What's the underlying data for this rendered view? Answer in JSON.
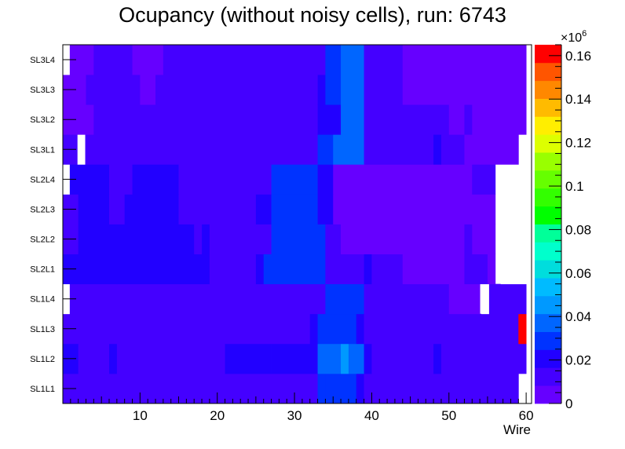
{
  "chart_data": {
    "type": "heatmap",
    "title": "Ocupancy (without noisy cells), run: 6743",
    "xlabel": "Wire",
    "ylabel": "",
    "xlim": [
      0,
      60.7
    ],
    "x_ticks": [
      "10",
      "20",
      "30",
      "40",
      "50",
      "60"
    ],
    "x_tick_values": [
      10,
      20,
      30,
      40,
      50,
      60
    ],
    "y_categories": [
      "SL1L1",
      "SL1L2",
      "SL1L3",
      "SL1L4",
      "SL2L1",
      "SL2L2",
      "SL2L3",
      "SL2L4",
      "SL3L1",
      "SL3L2",
      "SL3L3",
      "SL3L4"
    ],
    "color_scale": {
      "min": 0,
      "max": 0.165,
      "multiplier_label": "×10",
      "multiplier_exponent": "6",
      "ticks": [
        "0",
        "0.02",
        "0.04",
        "0.06",
        "0.08",
        "0.1",
        "0.12",
        "0.14",
        "0.16"
      ],
      "tick_values": [
        0,
        0.02,
        0.04,
        0.06,
        0.08,
        0.1,
        0.12,
        0.14,
        0.16
      ],
      "palette": [
        "#6600ff",
        "#4400ff",
        "#2200ff",
        "#0033ff",
        "#0066ff",
        "#0099ff",
        "#00bbff",
        "#00dddd",
        "#00ffcc",
        "#00ff99",
        "#00ff00",
        "#33ff00",
        "#66ff00",
        "#99ff00",
        "#ddff00",
        "#ffee00",
        "#ffbb00",
        "#ff8800",
        "#ff5500",
        "#ff0000"
      ]
    },
    "rows": [
      {
        "layer": "SL1L1",
        "segments": [
          [
            0,
            33,
            0.013
          ],
          [
            33,
            34,
            0.03
          ],
          [
            34,
            38,
            0.03
          ],
          [
            38,
            39,
            0.022
          ],
          [
            39,
            59,
            0.013
          ]
        ],
        "empty": [
          [
            59.7,
            60.7
          ]
        ]
      },
      {
        "layer": "SL1L2",
        "segments": [
          [
            0,
            2,
            0.022
          ],
          [
            2,
            6,
            0.013
          ],
          [
            6,
            7,
            0.022
          ],
          [
            7,
            21,
            0.013
          ],
          [
            21,
            27,
            0.022
          ],
          [
            27,
            33,
            0.022
          ],
          [
            33,
            36,
            0.04
          ],
          [
            36,
            37,
            0.048
          ],
          [
            37,
            39,
            0.04
          ],
          [
            39,
            40,
            0.022
          ],
          [
            40,
            48,
            0.013
          ],
          [
            48,
            49,
            0.022
          ],
          [
            49,
            60,
            0.013
          ]
        ],
        "empty": []
      },
      {
        "layer": "SL1L3",
        "segments": [
          [
            0,
            32,
            0.013
          ],
          [
            32,
            33,
            0.022
          ],
          [
            33,
            38,
            0.03
          ],
          [
            38,
            39,
            0.022
          ],
          [
            39,
            59,
            0.013
          ],
          [
            59,
            60,
            0.16
          ]
        ],
        "empty": []
      },
      {
        "layer": "SL1L4",
        "segments": [
          [
            0,
            34,
            0.013
          ],
          [
            34,
            39,
            0.03
          ],
          [
            39,
            50,
            0.013
          ],
          [
            50,
            54,
            0.008
          ]
        ],
        "empty": [
          [
            0,
            0.9
          ],
          [
            54.2,
            55.2
          ]
        ],
        "segments_extra": [
          [
            55,
            60,
            0.013
          ]
        ]
      },
      {
        "layer": "SL2L1",
        "segments": [
          [
            0,
            7,
            0.022
          ],
          [
            7,
            19,
            0.022
          ],
          [
            19,
            25,
            0.013
          ],
          [
            25,
            26,
            0.022
          ],
          [
            26,
            34,
            0.03
          ],
          [
            34,
            35,
            0.013
          ],
          [
            35,
            39,
            0.013
          ],
          [
            39,
            40,
            0.022
          ],
          [
            40,
            44,
            0.013
          ],
          [
            44,
            52,
            0.008
          ],
          [
            52,
            55,
            0.013
          ],
          [
            55,
            56,
            0.008
          ]
        ],
        "empty": [
          [
            56.7,
            60.7
          ]
        ]
      },
      {
        "layer": "SL2L2",
        "segments": [
          [
            0,
            2,
            0.013
          ],
          [
            2,
            8,
            0.022
          ],
          [
            8,
            17,
            0.022
          ],
          [
            17,
            18,
            0.013
          ],
          [
            18,
            19,
            0.022
          ],
          [
            19,
            27,
            0.013
          ],
          [
            27,
            34,
            0.03
          ],
          [
            34,
            36,
            0.013
          ],
          [
            36,
            52,
            0.008
          ],
          [
            52,
            53,
            0.013
          ],
          [
            53,
            56,
            0.008
          ]
        ],
        "empty": [
          [
            56.7,
            60.7
          ]
        ]
      },
      {
        "layer": "SL2L3",
        "segments": [
          [
            0,
            2,
            0.013
          ],
          [
            2,
            6,
            0.022
          ],
          [
            6,
            8,
            0.013
          ],
          [
            8,
            15,
            0.022
          ],
          [
            15,
            25,
            0.013
          ],
          [
            25,
            27,
            0.022
          ],
          [
            27,
            33,
            0.03
          ],
          [
            33,
            35,
            0.022
          ],
          [
            35,
            56,
            0.008
          ]
        ],
        "empty": [
          [
            56.7,
            60.7
          ]
        ]
      },
      {
        "layer": "SL2L4",
        "segments": [
          [
            0,
            2,
            0.022
          ],
          [
            2,
            6,
            0.022
          ],
          [
            6,
            9,
            0.013
          ],
          [
            9,
            15,
            0.022
          ],
          [
            15,
            27,
            0.013
          ],
          [
            27,
            33,
            0.03
          ],
          [
            33,
            35,
            0.022
          ],
          [
            35,
            53,
            0.008
          ],
          [
            53,
            56,
            0.013
          ]
        ],
        "empty": [
          [
            0,
            0.9
          ],
          [
            56.7,
            60.7
          ]
        ]
      },
      {
        "layer": "SL3L1",
        "segments": [
          [
            0,
            2,
            0.013
          ],
          [
            2,
            33,
            0.013
          ],
          [
            33,
            35,
            0.03
          ],
          [
            35,
            39,
            0.04
          ],
          [
            39,
            48,
            0.013
          ],
          [
            48,
            49,
            0.022
          ],
          [
            49,
            52,
            0.013
          ],
          [
            52,
            54,
            0.008
          ],
          [
            54,
            59,
            0.008
          ]
        ],
        "empty": [
          [
            1.9,
            2.9
          ],
          [
            59.7,
            60.7
          ]
        ]
      },
      {
        "layer": "SL3L2",
        "segments": [
          [
            0,
            4,
            0.008
          ],
          [
            4,
            33,
            0.013
          ],
          [
            33,
            36,
            0.022
          ],
          [
            36,
            39,
            0.04
          ],
          [
            39,
            50,
            0.013
          ],
          [
            50,
            52,
            0.008
          ],
          [
            52,
            53,
            0.013
          ],
          [
            53,
            60,
            0.008
          ]
        ],
        "empty": []
      },
      {
        "layer": "SL3L3",
        "segments": [
          [
            0,
            3,
            0.008
          ],
          [
            3,
            10,
            0.013
          ],
          [
            10,
            12,
            0.008
          ],
          [
            12,
            33,
            0.013
          ],
          [
            33,
            34,
            0.022
          ],
          [
            34,
            36,
            0.03
          ],
          [
            36,
            39,
            0.04
          ],
          [
            39,
            44,
            0.013
          ],
          [
            44,
            46,
            0.008
          ],
          [
            46,
            60,
            0.008
          ]
        ],
        "empty": []
      },
      {
        "layer": "SL3L4",
        "segments": [
          [
            0,
            4,
            0.008
          ],
          [
            4,
            9,
            0.013
          ],
          [
            9,
            13,
            0.008
          ],
          [
            13,
            34,
            0.013
          ],
          [
            34,
            36,
            0.03
          ],
          [
            36,
            39,
            0.04
          ],
          [
            39,
            44,
            0.013
          ],
          [
            44,
            60,
            0.008
          ]
        ],
        "empty": [
          [
            0,
            0.9
          ]
        ]
      }
    ]
  }
}
